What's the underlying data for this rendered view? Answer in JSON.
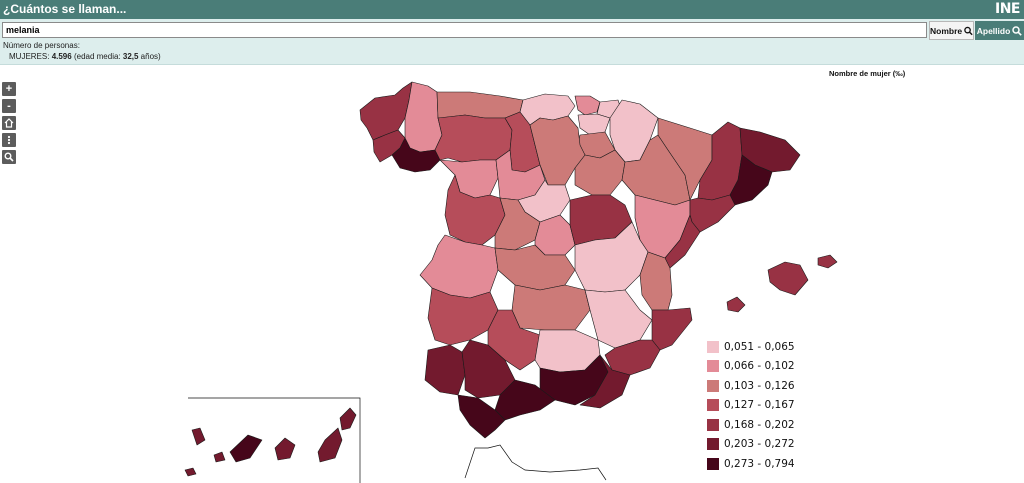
{
  "title": "¿Cuántos se llaman...",
  "logo": "INE",
  "search": {
    "value": "melania"
  },
  "buttons": {
    "nombre": "Nombre",
    "apellido": "Apellido"
  },
  "count": {
    "label": "Número de personas:",
    "gender": "MUJERES:",
    "total": "4.596",
    "age_text": "(edad media: ",
    "age": "32,5",
    "age_unit": " años)"
  },
  "map_title": "Nombre de mujer (‰)",
  "controls": {
    "zoom_in": "+",
    "zoom_out": "-"
  },
  "legend": [
    {
      "label": "0,051 - 0,065",
      "color": "#f2c1c9"
    },
    {
      "label": "0,066 - 0,102",
      "color": "#e38b97"
    },
    {
      "label": "0,103 - 0,126",
      "color": "#cc7a78"
    },
    {
      "label": "0,127 - 0,167",
      "color": "#b64d5a"
    },
    {
      "label": "0,168 - 0,202",
      "color": "#983244"
    },
    {
      "label": "0,203 - 0,272",
      "color": "#731a2e"
    },
    {
      "label": "0,273 - 0,794",
      "color": "#46061a"
    }
  ]
}
